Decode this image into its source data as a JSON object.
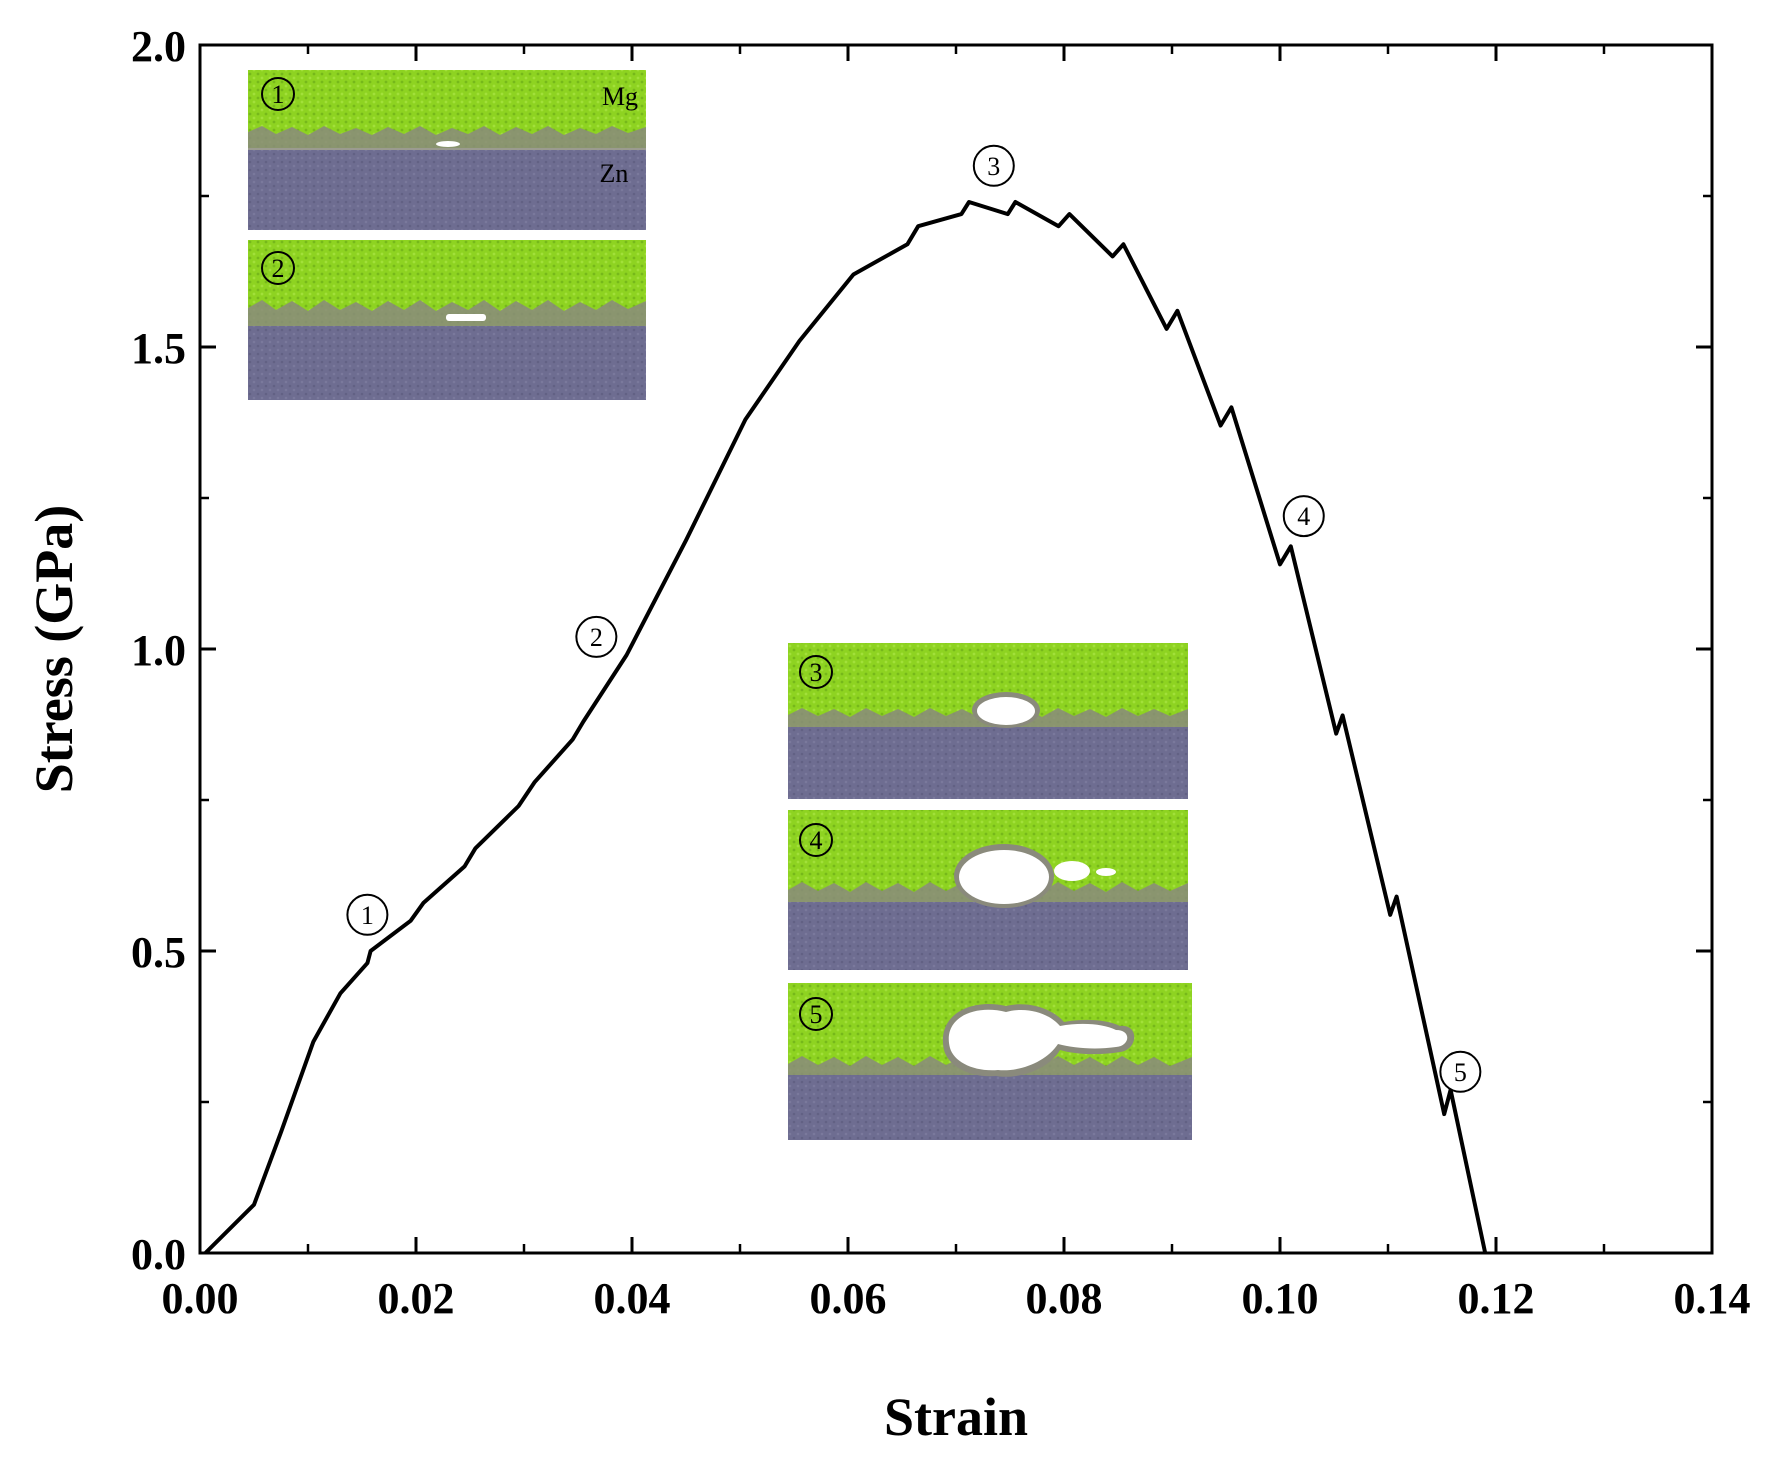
{
  "chart_data": {
    "type": "line",
    "title": "",
    "xlabel": "Strain",
    "ylabel": "Stress (GPa)",
    "xlim": [
      0.0,
      0.14
    ],
    "ylim": [
      0.0,
      2.0
    ],
    "x_ticks": [
      "0.00",
      "0.02",
      "0.04",
      "0.06",
      "0.08",
      "0.10",
      "0.12",
      "0.14"
    ],
    "y_ticks": [
      "0.0",
      "0.5",
      "1.0",
      "1.5",
      "2.0"
    ],
    "x_tick_values": [
      0.0,
      0.02,
      0.04,
      0.06,
      0.08,
      0.1,
      0.12,
      0.14
    ],
    "y_tick_values": [
      0.0,
      0.5,
      1.0,
      1.5,
      2.0
    ],
    "grid": false,
    "series": [
      {
        "name": "Stress-strain curve",
        "color": "#000000",
        "x": [
          0.0005,
          0.005,
          0.0075,
          0.0105,
          0.013,
          0.0155,
          0.0158,
          0.0195,
          0.0207,
          0.0245,
          0.0255,
          0.0295,
          0.031,
          0.0345,
          0.0355,
          0.0395,
          0.045,
          0.0505,
          0.0555,
          0.0605,
          0.0625,
          0.0655,
          0.0665,
          0.0705,
          0.0712,
          0.0748,
          0.0755,
          0.0795,
          0.0805,
          0.0845,
          0.0855,
          0.0895,
          0.0905,
          0.0945,
          0.0955,
          0.1,
          0.101,
          0.1052,
          0.1058,
          0.1102,
          0.1108,
          0.1152,
          0.1158,
          0.119
        ],
        "values": [
          0.0,
          0.08,
          0.2,
          0.35,
          0.43,
          0.48,
          0.5,
          0.55,
          0.58,
          0.64,
          0.67,
          0.74,
          0.78,
          0.85,
          0.88,
          0.99,
          1.18,
          1.38,
          1.51,
          1.62,
          1.64,
          1.67,
          1.7,
          1.72,
          1.74,
          1.72,
          1.74,
          1.7,
          1.72,
          1.65,
          1.67,
          1.53,
          1.56,
          1.37,
          1.4,
          1.14,
          1.17,
          0.86,
          0.89,
          0.56,
          0.59,
          0.23,
          0.27,
          0.0
        ]
      }
    ],
    "markers": [
      {
        "label": "1",
        "x": 0.0155,
        "y": 0.56
      },
      {
        "label": "2",
        "x": 0.0367,
        "y": 1.02
      },
      {
        "label": "3",
        "x": 0.0735,
        "y": 1.8
      },
      {
        "label": "4",
        "x": 0.1022,
        "y": 1.22
      },
      {
        "label": "5",
        "x": 0.1167,
        "y": 0.3
      }
    ],
    "inset_colors": {
      "mg": "#8ed321",
      "zn": "#6e6d91",
      "void": "#ffffff"
    },
    "insets": [
      {
        "label": "1",
        "top_text": "Mg",
        "bottom_text": "Zn"
      },
      {
        "label": "2"
      },
      {
        "label": "3"
      },
      {
        "label": "4"
      },
      {
        "label": "5"
      }
    ]
  }
}
